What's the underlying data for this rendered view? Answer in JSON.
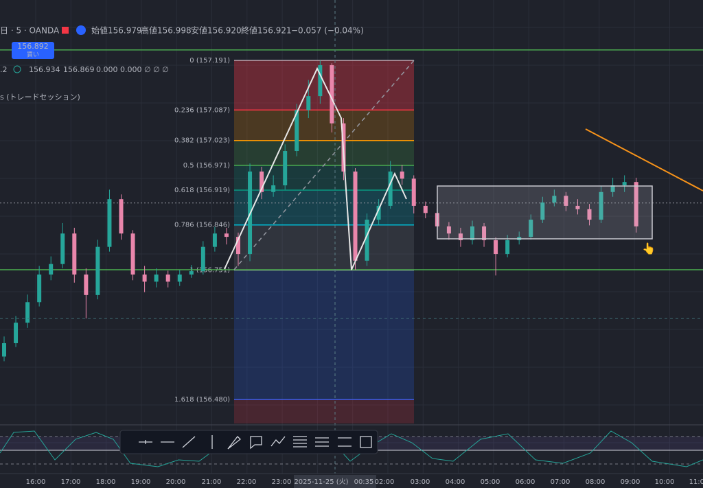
{
  "header": {
    "symbol": "日 · 5 · OANDA",
    "open_label": "始値",
    "open": "156.979",
    "high_label": "高値",
    "high": "156.998",
    "low_label": "安値",
    "low": "156.920",
    "close_label": "終値",
    "close": "156.921",
    "change": "−0.057 (−0.04%)"
  },
  "buy_button": {
    "price": "156.892",
    "label": "買い"
  },
  "indicator": {
    "name": ".2",
    "values": [
      "156.934",
      "156.869",
      "0.000",
      "0.000",
      "∅ ∅ ∅"
    ]
  },
  "session": "s (トレードセッション)",
  "fib_levels": [
    {
      "label": "0 (157.191)",
      "price": 157.191,
      "color": "#b2b5be"
    },
    {
      "label": "0.236 (157.087)",
      "price": 157.087,
      "color": "#f23645"
    },
    {
      "label": "0.382 (157.023)",
      "price": 157.023,
      "color": "#ff9800"
    },
    {
      "label": "0.5 (156.971)",
      "price": 156.971,
      "color": "#4caf50"
    },
    {
      "label": "0.618 (156.919)",
      "price": 156.919,
      "color": "#089981"
    },
    {
      "label": "0.786 (156.846)",
      "price": 156.846,
      "color": "#00bcd4"
    },
    {
      "label": "1 (156.751)",
      "price": 156.751,
      "color": "#787b86"
    },
    {
      "label": "1.618 (156.480)",
      "price": 156.48,
      "color": "#2962ff"
    }
  ],
  "horizontal_lines": [
    {
      "price": 157.213,
      "color": "#4caf50"
    },
    {
      "price": 156.752,
      "color": "#4caf50"
    },
    {
      "price": 156.892,
      "color": "#9598a1"
    }
  ],
  "candles": [
    [
      156.57,
      156.612,
      156.56,
      156.598
    ],
    [
      156.598,
      156.655,
      156.59,
      156.641
    ],
    [
      156.641,
      156.7,
      156.63,
      156.684
    ],
    [
      156.684,
      156.76,
      156.675,
      156.742
    ],
    [
      156.742,
      156.78,
      156.73,
      156.764
    ],
    [
      156.764,
      156.85,
      156.755,
      156.828
    ],
    [
      156.828,
      156.84,
      156.725,
      156.742
    ],
    [
      156.742,
      156.755,
      156.65,
      156.699
    ],
    [
      156.699,
      156.815,
      156.69,
      156.8
    ],
    [
      156.8,
      156.92,
      156.79,
      156.9
    ],
    [
      156.9,
      156.91,
      156.815,
      156.828
    ],
    [
      156.828,
      156.835,
      156.73,
      156.742
    ],
    [
      156.742,
      156.76,
      156.705,
      156.727
    ],
    [
      156.727,
      156.755,
      156.715,
      156.742
    ],
    [
      156.742,
      156.75,
      156.715,
      156.727
    ],
    [
      156.727,
      156.752,
      156.718,
      156.742
    ],
    [
      156.742,
      156.762,
      156.735,
      156.749
    ],
    [
      156.749,
      156.812,
      156.742,
      156.8
    ],
    [
      156.8,
      156.842,
      156.79,
      156.828
    ],
    [
      156.828,
      156.84,
      156.805,
      156.821
    ],
    [
      156.821,
      156.83,
      156.76,
      156.785
    ],
    [
      156.785,
      156.975,
      156.77,
      156.958
    ],
    [
      156.958,
      156.968,
      156.9,
      156.915
    ],
    [
      156.915,
      156.95,
      156.905,
      156.929
    ],
    [
      156.929,
      157.015,
      156.92,
      157.001
    ],
    [
      157.001,
      157.1,
      156.99,
      157.087
    ],
    [
      157.087,
      157.15,
      157.07,
      157.116
    ],
    [
      157.116,
      157.191,
      157.1,
      157.181
    ],
    [
      157.181,
      157.185,
      157.04,
      157.059
    ],
    [
      157.059,
      157.07,
      156.94,
      156.958
    ],
    [
      156.958,
      156.965,
      156.752,
      156.771
    ],
    [
      156.771,
      156.87,
      156.76,
      156.857
    ],
    [
      156.857,
      156.9,
      156.845,
      156.886
    ],
    [
      156.886,
      156.98,
      156.88,
      156.958
    ],
    [
      156.958,
      156.972,
      156.93,
      156.943
    ],
    [
      156.943,
      156.95,
      156.87,
      156.886
    ],
    [
      156.886,
      156.895,
      156.86,
      156.871
    ],
    [
      156.871,
      156.88,
      156.83,
      156.843
    ],
    [
      156.843,
      156.852,
      156.815,
      156.828
    ],
    [
      156.828,
      156.84,
      156.8,
      156.814
    ],
    [
      156.814,
      156.855,
      156.805,
      156.843
    ],
    [
      156.843,
      156.85,
      156.8,
      156.814
    ],
    [
      156.814,
      156.82,
      156.74,
      156.785
    ],
    [
      156.785,
      156.825,
      156.778,
      156.814
    ],
    [
      156.814,
      156.832,
      156.805,
      156.821
    ],
    [
      156.821,
      156.868,
      156.815,
      156.857
    ],
    [
      156.857,
      156.905,
      156.85,
      156.893
    ],
    [
      156.893,
      156.92,
      156.885,
      156.907
    ],
    [
      156.907,
      156.915,
      156.875,
      156.886
    ],
    [
      156.886,
      156.9,
      156.868,
      156.879
    ],
    [
      156.879,
      156.89,
      156.845,
      156.857
    ],
    [
      156.857,
      156.928,
      156.85,
      156.915
    ],
    [
      156.915,
      156.945,
      156.905,
      156.929
    ],
    [
      156.929,
      156.95,
      156.915,
      156.936
    ],
    [
      156.936,
      156.945,
      156.83,
      156.843
    ]
  ],
  "time_axis": [
    "16:00",
    "17:00",
    "18:00",
    "19:00",
    "20:00",
    "21:00",
    "22:00",
    "23:00",
    "2025-11-25 (火)",
    "00:35",
    "02:00",
    "03:00",
    "04:00",
    "05:00",
    "06:00",
    "07:00",
    "08:00",
    "09:00",
    "10:00",
    "11:00"
  ]
}
